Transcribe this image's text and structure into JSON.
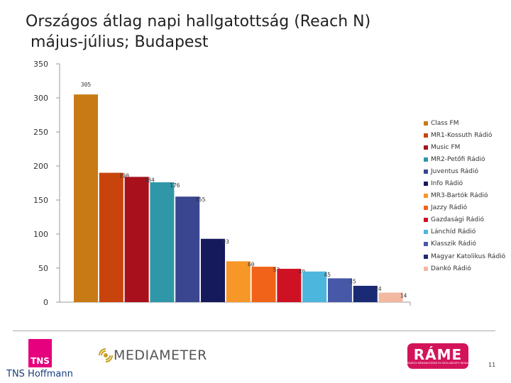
{
  "title_line1": "Országos átlag napi hallgatottság (Reach N)",
  "title_line2": "május-július; Budapest",
  "chart_data": {
    "type": "bar",
    "categories": [
      "Class FM",
      "MR1-Kossuth Rádió",
      "Music FM",
      "MR2-Petőfi Rádió",
      "Juventus Rádió",
      "Info Rádió",
      "MR3-Bartók Rádió",
      "Jazzy Rádió",
      "Gazdasági Rádió",
      "Lánchíd Rádió",
      "Klasszik Rádió",
      "Magyar Katolikus Rádió",
      "Dankó Rádió"
    ],
    "values": [
      305,
      190,
      184,
      176,
      155,
      93,
      60,
      52,
      49,
      45,
      35,
      24,
      14
    ],
    "colors": [
      "#c87a14",
      "#c8440c",
      "#a8101c",
      "#2f97a8",
      "#3a4790",
      "#151a5c",
      "#f79728",
      "#f06318",
      "#cf1124",
      "#4cb6dc",
      "#4758a8",
      "#1a2a74",
      "#f2b8a0"
    ],
    "yticks": [
      0,
      50,
      100,
      150,
      200,
      250,
      300,
      350
    ],
    "ylim": [
      0,
      350
    ],
    "legend_position": "right",
    "grid": false
  },
  "footer": {
    "tns_logo": "TNS",
    "tns_name": "TNS Hoffmann",
    "mediameter": "MEDIAMETER",
    "rame": "RÁME",
    "rame_sub": "RÁDIÓS MÉDIAKUTATÁSI ÉS SZOLGÁLTATÓ IRODA",
    "page_number": "11"
  }
}
